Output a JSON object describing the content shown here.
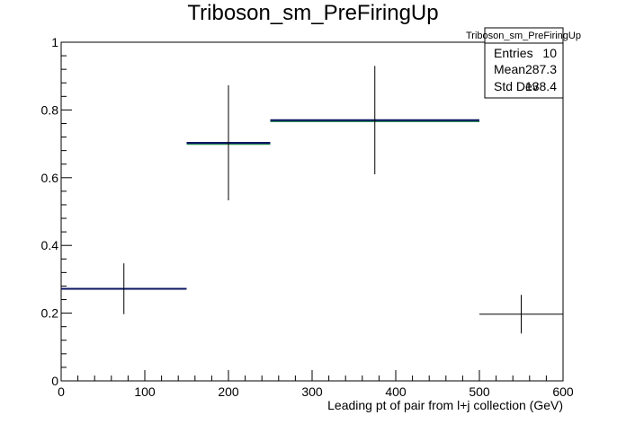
{
  "chart_data": {
    "type": "bar",
    "title": "Triboson_sm_PreFiringUp",
    "xlabel": "Leading pt of pair from l+j collection (GeV)",
    "ylabel": "",
    "xlim": [
      0,
      600
    ],
    "ylim": [
      0,
      1.0
    ],
    "x_ticks": [
      "0",
      "100",
      "200",
      "300",
      "400",
      "500",
      "600"
    ],
    "y_ticks": [
      "0",
      "0.2",
      "0.4",
      "0.6",
      "0.8",
      "1"
    ],
    "grid": false,
    "series": [
      {
        "bins": [
          {
            "x_low": 0,
            "x_high": 150,
            "x_center": 75,
            "value": 0.272,
            "err_low": 0.075,
            "err_high": 0.075
          },
          {
            "x_low": 150,
            "x_high": 250,
            "x_center": 200,
            "value": 0.703,
            "err_low": 0.17,
            "err_high": 0.17
          },
          {
            "x_low": 250,
            "x_high": 500,
            "x_center": 375,
            "value": 0.77,
            "err_low": 0.16,
            "err_high": 0.16
          },
          {
            "x_low": 500,
            "x_high": 600,
            "x_center": 550,
            "value": 0.197,
            "err_low": 0.057,
            "err_high": 0.057
          }
        ]
      }
    ],
    "stats_box": {
      "title": "Triboson_sm_PreFiringUp",
      "rows": [
        {
          "label": "Entries",
          "value": "10"
        },
        {
          "label": "Mean",
          "value": "287.3"
        },
        {
          "label": "Std Dev",
          "value": "138.4"
        }
      ],
      "placement": "top-right"
    },
    "colors": {
      "line": "#0a1560",
      "fill_edge": "#2e8b57",
      "error": "#000000"
    }
  }
}
